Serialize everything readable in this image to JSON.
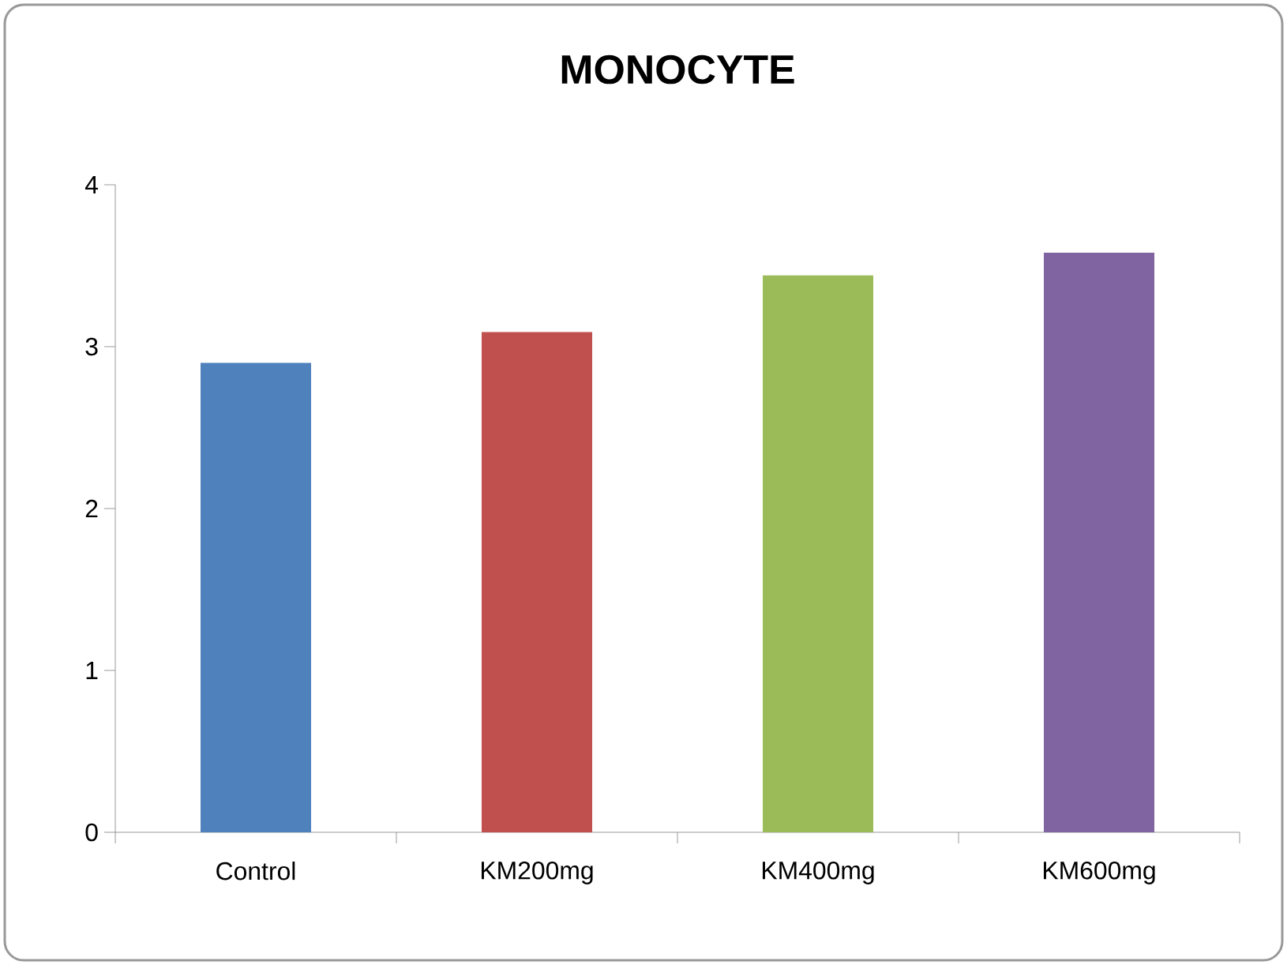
{
  "chart_data": {
    "type": "bar",
    "title": "MONOCYTE",
    "categories": [
      "Control",
      "KM200mg",
      "KM400mg",
      "KM600mg"
    ],
    "values": [
      2.9,
      3.09,
      3.44,
      3.58
    ],
    "colors": [
      "#4f81bd",
      "#c0504d",
      "#9bbb59",
      "#8064a2"
    ],
    "ylim": [
      0,
      4
    ],
    "yticks": [
      0,
      1,
      2,
      3,
      4
    ]
  }
}
